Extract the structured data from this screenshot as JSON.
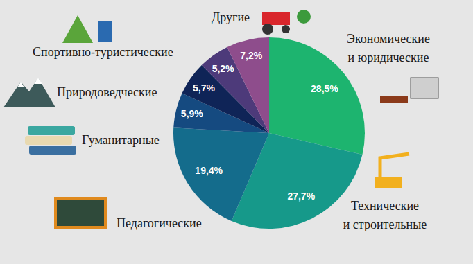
{
  "chart_data": {
    "type": "pie",
    "categories": [
      "Экономические\nи юридические",
      "Технические\nи строительные",
      "Педагогические",
      "Гуманитарные",
      "Природоведческие",
      "Спортивно-туристические",
      "Другие"
    ],
    "values": [
      28.5,
      27.7,
      19.4,
      5.9,
      5.7,
      5.2,
      7.2
    ],
    "value_labels": [
      "28,5%",
      "27,7%",
      "19,4%",
      "5,9%",
      "5,7%",
      "5,2%",
      "7,2%"
    ],
    "colors": [
      "#1db46f",
      "#16998a",
      "#146c8c",
      "#154a80",
      "#0f2457",
      "#4d3a7a",
      "#8e4d8c"
    ],
    "data_labels": true
  }
}
